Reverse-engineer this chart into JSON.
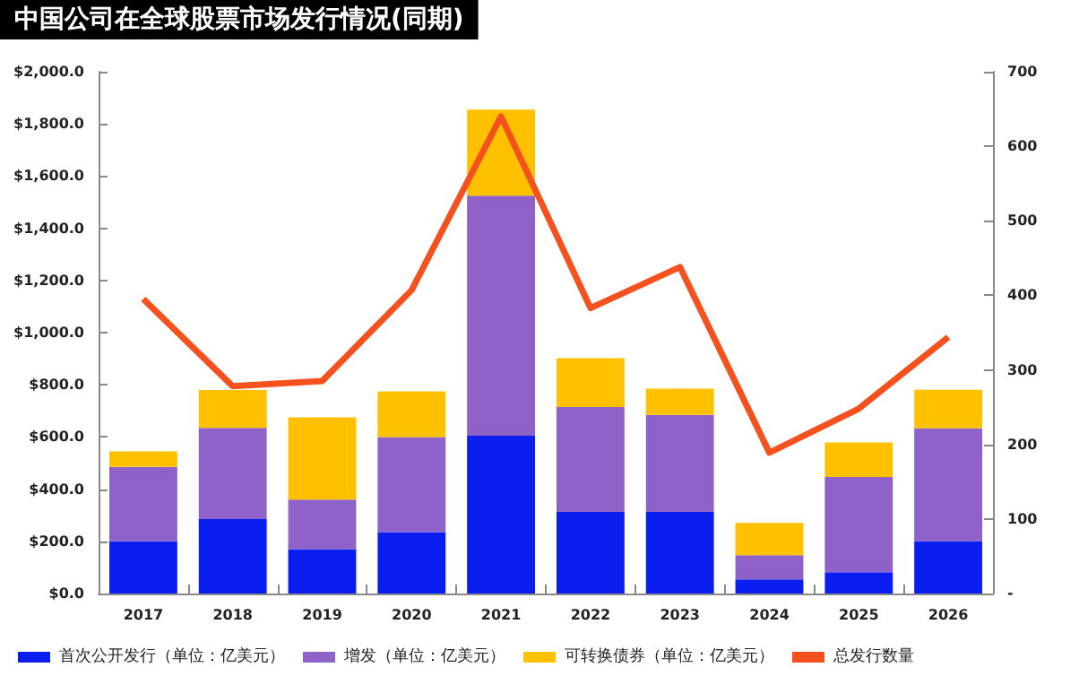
{
  "chart_data": {
    "type": "bar",
    "title": "中国公司在全球股票市场发行情况(同期)",
    "stacked": true,
    "categories": [
      "2017",
      "2018",
      "2019",
      "2020",
      "2021",
      "2022",
      "2023",
      "2024",
      "2025",
      "2026"
    ],
    "series": [
      {
        "name": "首次公开发行（单位：亿美元）",
        "color": "#0a1ef0",
        "values": [
          200,
          285,
          170,
          235,
          605,
          313,
          313,
          54,
          82,
          201
        ]
      },
      {
        "name": "增发（单位：亿美元）",
        "color": "#8e62c8",
        "values": [
          285,
          350,
          190,
          365,
          920,
          402,
          372,
          93,
          365,
          432
        ]
      },
      {
        "name": "可转换债券（单位：亿美元）",
        "color": "#ffc000",
        "values": [
          60,
          145,
          315,
          175,
          330,
          187,
          100,
          124,
          132,
          148
        ]
      },
      {
        "name": "总发行数量",
        "type": "line",
        "axis": "y2",
        "color": "#f4511e",
        "values": [
          395,
          278,
          285,
          407,
          640,
          383,
          438,
          189,
          248,
          344
        ]
      }
    ],
    "ylim": [
      0,
      2000
    ],
    "yticks": [
      {
        "value": 0,
        "label": "$0.0"
      },
      {
        "value": 200,
        "label": "$200.0"
      },
      {
        "value": 400,
        "label": "$400.0"
      },
      {
        "value": 600,
        "label": "$600.0"
      },
      {
        "value": 800,
        "label": "$800.0"
      },
      {
        "value": 1000,
        "label": "$1,000.0"
      },
      {
        "value": 1200,
        "label": "$1,200.0"
      },
      {
        "value": 1400,
        "label": "$1,400.0"
      },
      {
        "value": 1600,
        "label": "$1,600.0"
      },
      {
        "value": 1800,
        "label": "$1,800.0"
      },
      {
        "value": 2000,
        "label": "$2,000.0"
      }
    ],
    "y2lim": [
      0,
      700
    ],
    "y2ticks": [
      {
        "value": 0,
        "label": "-"
      },
      100,
      200,
      300,
      400,
      500,
      600,
      700
    ],
    "grid": false,
    "legend": "bottom",
    "marker": "none"
  }
}
